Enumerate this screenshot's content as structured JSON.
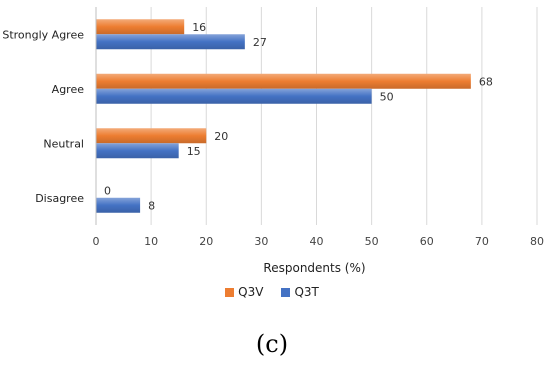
{
  "chart_data": {
    "type": "bar",
    "orientation": "horizontal",
    "categories": [
      "Strongly Agree",
      "Agree",
      "Neutral",
      "Disagree"
    ],
    "series": [
      {
        "name": "Q3V",
        "values": [
          16,
          68,
          20,
          0
        ],
        "color": "#ED7D31"
      },
      {
        "name": "Q3T",
        "values": [
          27,
          50,
          15,
          8
        ],
        "color": "#4472C4"
      }
    ],
    "xlabel": "Respondents (%)",
    "ylabel": "",
    "xlim": [
      0,
      80
    ],
    "xticks": [
      0,
      10,
      20,
      30,
      40,
      50,
      60,
      70,
      80
    ],
    "grid": true,
    "legend_position": "bottom",
    "data_labels": true
  },
  "caption": "(c)"
}
